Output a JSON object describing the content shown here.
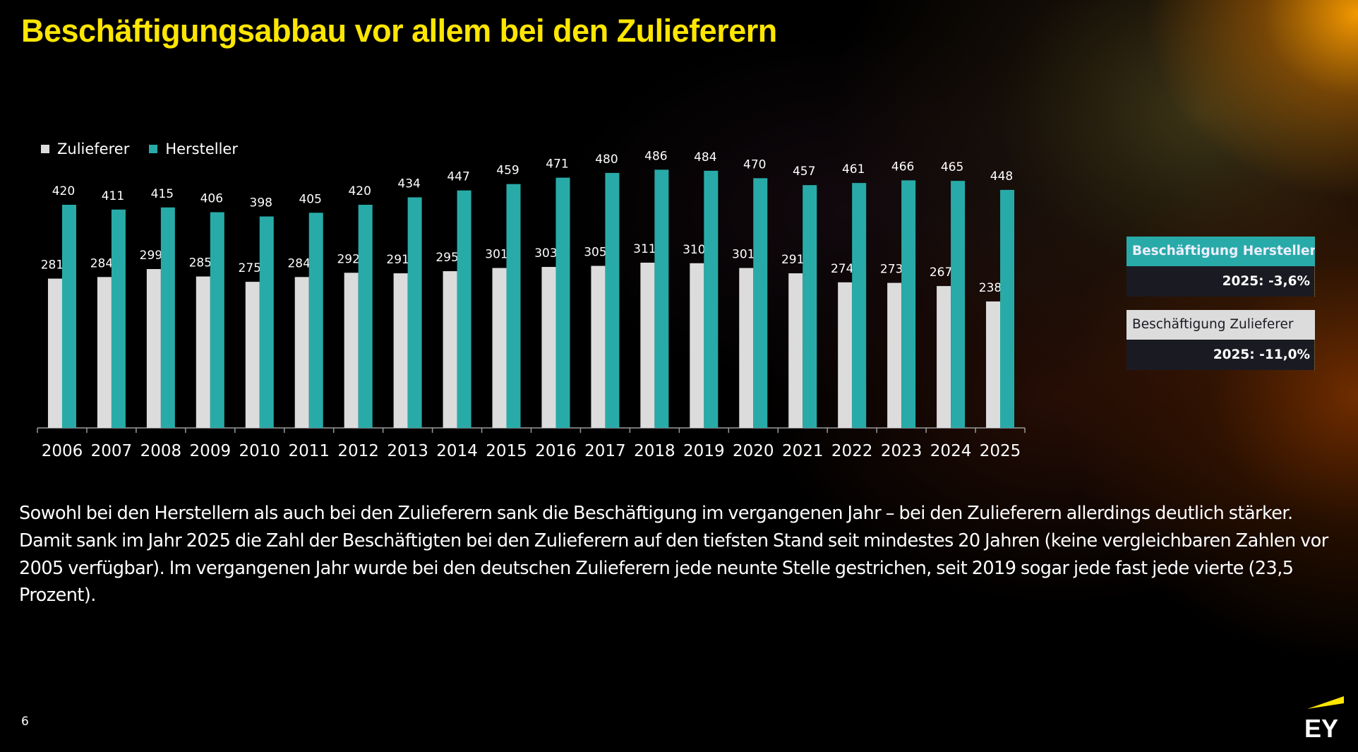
{
  "title": "Beschäftigungsabbau vor allem bei den Zulieferern",
  "legend": [
    {
      "label": "Zulieferer",
      "color": "#dcdcdc"
    },
    {
      "label": "Hersteller",
      "color": "#28aba8"
    }
  ],
  "chart_data": {
    "type": "bar",
    "title": "",
    "xlabel": "",
    "ylabel": "",
    "ylim": [
      0,
      500
    ],
    "grid": false,
    "legend_position": "top-left",
    "categories": [
      "2006",
      "2007",
      "2008",
      "2009",
      "2010",
      "2011",
      "2012",
      "2013",
      "2014",
      "2015",
      "2016",
      "2017",
      "2018",
      "2019",
      "2020",
      "2021",
      "2022",
      "2023",
      "2024",
      "2025"
    ],
    "series": [
      {
        "name": "Zulieferer",
        "color": "#dcdcdc",
        "values": [
          281,
          284,
          299,
          285,
          275,
          284,
          292,
          291,
          295,
          301,
          303,
          305,
          311,
          310,
          301,
          291,
          274,
          273,
          267,
          238
        ]
      },
      {
        "name": "Hersteller",
        "color": "#28aba8",
        "values": [
          420,
          411,
          415,
          406,
          398,
          405,
          420,
          434,
          447,
          459,
          471,
          480,
          486,
          484,
          470,
          457,
          461,
          466,
          465,
          448
        ]
      }
    ]
  },
  "boxes": [
    {
      "label": "Beschäftigung Hersteller",
      "value": "2025: -3,6%"
    },
    {
      "label": "Beschäftigung Zulieferer",
      "value": "2025: -11,0%"
    }
  ],
  "paragraph": "Sowohl bei den Herstellern als auch bei den Zulieferern sank die Beschäftigung im vergangenen Jahr – bei den Zulieferern allerdings deutlich stärker. Damit sank im Jahr 2025 die Zahl der Beschäftigten bei den Zulieferern auf den tiefsten Stand seit mindestes 20 Jahren (keine vergleichbaren Zahlen vor 2005 verfügbar). Im vergangenen Jahr wurde bei den deutschen Zulieferern jede neunte Stelle gestrichen, seit 2019 sogar jede fast jede vierte (23,5 Prozent).",
  "page_number": "6",
  "logo": {
    "text": "EY",
    "accent": "#ffe600"
  }
}
